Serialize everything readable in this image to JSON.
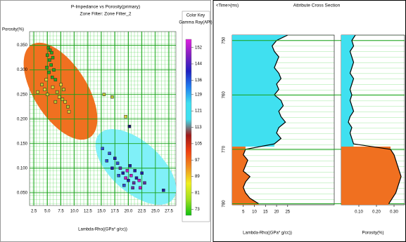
{
  "chart_data": [
    {
      "type": "scatter",
      "title": "P-Impedance vs Porosity(primary)",
      "subtitle": "Zone Filter: Zone Filter_2",
      "ylabel": "Porosity(%)",
      "xlabel": "Lambda-Rho((GPa* g/cc))",
      "xlim": [
        1.7,
        28.8
      ],
      "ylim": [
        0.024,
        0.378
      ],
      "xticks": [
        2.5,
        {
          "value": 5,
          "label": "5.0"
        },
        7.5,
        {
          "value": 10,
          "label": "10.0"
        },
        12.5,
        {
          "value": 15,
          "label": "15.0"
        },
        17.5,
        {
          "value": 20,
          "label": "20.0"
        },
        22.5,
        {
          "value": 25,
          "label": "25.0"
        },
        27.5
      ],
      "yticks": [
        {
          "value": 0.05,
          "label": "0.050"
        },
        {
          "value": 0.1,
          "label": "0.100"
        },
        {
          "value": 0.15,
          "label": "0.150"
        },
        {
          "value": 0.2,
          "label": "0.200"
        },
        {
          "value": 0.25,
          "label": "0.250"
        },
        {
          "value": 0.3,
          "label": "0.300"
        },
        {
          "value": 0.35,
          "label": "0.350"
        }
      ],
      "grid": true,
      "x": [
        5.2,
        5.5,
        5.8,
        5.0,
        6.0,
        5.4,
        5.7,
        4.9,
        6.2,
        5.3,
        5.9,
        6.5,
        3.2,
        4.0,
        4.5,
        5.0,
        6.0,
        6.8,
        7.2,
        7.8,
        8.3,
        8.8,
        7.5,
        8.0,
        9.0,
        6.5,
        4.8,
        15.5,
        17.0,
        19.5,
        20.2,
        15.2,
        16.5,
        17.5,
        18.0,
        18.5,
        19.0,
        19.5,
        20.0,
        20.5,
        21.0,
        21.5,
        22.0,
        19.2,
        20.8,
        22.5,
        18.2,
        19.8,
        21.2,
        23.0,
        17.0,
        16.0,
        20.3,
        22.2,
        26.5
      ],
      "values": [
        0.345,
        0.34,
        0.335,
        0.33,
        0.325,
        0.32,
        0.31,
        0.305,
        0.3,
        0.295,
        0.285,
        0.28,
        0.255,
        0.27,
        0.26,
        0.25,
        0.265,
        0.255,
        0.245,
        0.24,
        0.235,
        0.225,
        0.27,
        0.26,
        0.215,
        0.235,
        0.28,
        0.25,
        0.245,
        0.205,
        0.185,
        0.14,
        0.13,
        0.12,
        0.11,
        0.1,
        0.09,
        0.08,
        0.075,
        0.085,
        0.07,
        0.08,
        0.075,
        0.065,
        0.06,
        0.09,
        0.085,
        0.095,
        0.095,
        0.07,
        0.1,
        0.115,
        0.105,
        0.06,
        0.055
      ],
      "colors": [
        "#22aa22",
        "#22aa22",
        "#22aa22",
        "#22aa22",
        "#22aa22",
        "#22aa22",
        "#22aa22",
        "#22aa22",
        "#22aa22",
        "#22aa22",
        "#22aa22",
        "#22aa22",
        "#d8d83a",
        "#b8c830",
        "#d8d83a",
        "#b8c830",
        "#d8d83a",
        "#b8c830",
        "#d8d83a",
        "#b8c830",
        "#d8d83a",
        "#b8c830",
        "#d8d83a",
        "#b8c830",
        "#d8d83a",
        "#b8c830",
        "#d8d83a",
        "#b8c830",
        "#b8c830",
        "#d8d83a",
        "#1a1a6a",
        "#3050d0",
        "#3050d0",
        "#2020a0",
        "#3050d0",
        "#6030a0",
        "#2020a0",
        "#c020c0",
        "#2020a0",
        "#c020c0",
        "#6030a0",
        "#2020a0",
        "#c020c0",
        "#3050d0",
        "#6030a0",
        "#2020a0",
        "#3050d0",
        "#c020c0",
        "#2020a0",
        "#6030a0",
        "#2020a0",
        "#3050d0",
        "#2020a0",
        "#c020c0",
        "#2020a0"
      ],
      "colorbar": {
        "title": "Color Key",
        "label": "Gamma Ray(API)",
        "clim": [
          70,
          156
        ],
        "ticks": [
          73,
          81,
          89,
          97,
          105,
          113,
          121,
          129,
          136,
          144,
          152
        ],
        "colors": [
          "#e020e0",
          "#8020c0",
          "#2020c0",
          "#2080f0",
          "#40e0f0",
          "#40e0f0",
          "#a01818",
          "#f04010",
          "#f09020",
          "#f0f020",
          "#a0e020",
          "#10c010"
        ]
      }
    },
    {
      "type": "log",
      "title": "Attribute Cross Section",
      "ylabel": "<Time>(ms)",
      "xlabel": "Lambda-Rho((GPa* g/cc))",
      "xlim": [
        0,
        46
      ],
      "ylim": [
        749,
        780.2
      ],
      "xticks": [
        5,
        10,
        15,
        20,
        25
      ],
      "yticks": [
        750,
        760,
        770,
        780
      ],
      "zone_boundary": 769.5,
      "fill_colors": [
        "#40e0f0",
        "#f07020"
      ],
      "color": "#000000",
      "y": [
        749,
        750,
        751,
        752,
        753,
        754,
        755,
        756,
        757,
        758,
        759,
        760,
        761,
        762,
        763,
        764,
        765,
        766,
        767,
        768,
        769,
        770,
        771,
        772,
        773,
        774,
        775,
        776,
        777,
        778,
        779,
        780
      ],
      "values": [
        25,
        20,
        18,
        19,
        21,
        20,
        19,
        21,
        22,
        20,
        21,
        19,
        22,
        23,
        21,
        22,
        24,
        21,
        20,
        22,
        19,
        6,
        5,
        7,
        6,
        5,
        8,
        6,
        5,
        6,
        8,
        12
      ]
    },
    {
      "type": "log",
      "xlabel": "Porosity(%)",
      "xlim": [
        0,
        0.36
      ],
      "ylim": [
        749,
        780.2
      ],
      "xticks": [
        {
          "value": 0.1,
          "label": "0.10"
        },
        {
          "value": 0.2,
          "label": "0.20"
        },
        {
          "value": 0.3,
          "label": "0.30"
        }
      ],
      "zone_boundary": 769.5,
      "fill_colors": [
        "#40e0f0",
        "#f07020"
      ],
      "color": "#000000",
      "y": [
        749,
        750,
        751,
        752,
        753,
        754,
        755,
        756,
        757,
        758,
        759,
        760,
        761,
        762,
        763,
        764,
        765,
        766,
        767,
        768,
        769,
        770,
        771,
        772,
        773,
        774,
        775,
        776,
        777,
        778,
        779,
        780
      ],
      "values": [
        0.08,
        0.06,
        0.07,
        0.05,
        0.06,
        0.07,
        0.06,
        0.05,
        0.07,
        0.06,
        0.05,
        0.06,
        0.05,
        0.06,
        0.07,
        0.05,
        0.04,
        0.06,
        0.05,
        0.06,
        0.07,
        0.28,
        0.3,
        0.31,
        0.32,
        0.33,
        0.34,
        0.33,
        0.32,
        0.31,
        0.29,
        0.27
      ]
    }
  ]
}
